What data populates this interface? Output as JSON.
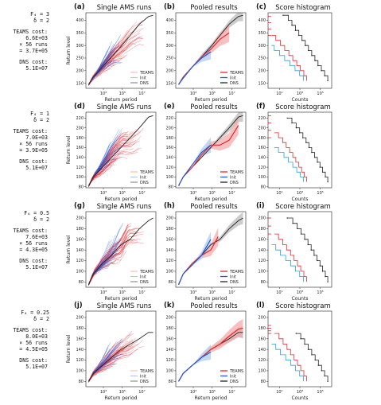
{
  "chart_data": {
    "type": "line",
    "column_titles": [
      "Single AMS runs",
      "Pooled results",
      "Score histogram"
    ],
    "xlabels": [
      "Return period",
      "Return period",
      "Counts"
    ],
    "ylabel": "Return level",
    "legend": [
      "TEAMS",
      "Init",
      "DNS"
    ],
    "rows": [
      {
        "labels": [
          "(a)",
          "(b)",
          "(c)"
        ],
        "side": [
          "F₄ = 3",
          "δ = 2",
          "TEAMS cost:",
          "6.6E+03",
          "× 56 runs",
          "= 3.7E+05",
          "DNS cost:",
          "5.1E+07"
        ],
        "ylim": [
          130,
          430
        ],
        "yticks": [
          150,
          200,
          250,
          300,
          350,
          400
        ],
        "dns_x": [
          0.5,
          1,
          2,
          3,
          4,
          5,
          6,
          7,
          7.5
        ],
        "dns_y": [
          145,
          175,
          215,
          255,
          295,
          340,
          385,
          415,
          420
        ],
        "teams_x": [
          0.5,
          1,
          2,
          3,
          4,
          5,
          6
        ],
        "teams_y": [
          145,
          175,
          215,
          255,
          285,
          325,
          350
        ],
        "init_x": [
          0.5,
          1,
          2,
          3,
          4
        ],
        "init_y": [
          145,
          170,
          215,
          250,
          275
        ],
        "hist_levels": [
          160,
          180,
          200,
          220,
          240,
          260,
          280,
          300,
          320,
          340,
          360,
          380,
          400,
          420
        ],
        "hist_dns_counts": [
          2300000,
          1000000,
          430000,
          180000,
          80000,
          35000,
          15000,
          6500,
          2800,
          1200,
          500,
          200,
          80,
          20
        ],
        "hist_teams_counts": [
          9000,
          4500,
          1800,
          700,
          250,
          90,
          30,
          10,
          3,
          1
        ],
        "hist_init_counts": [
          4000,
          1500,
          450,
          120,
          30,
          8,
          2,
          1
        ]
      },
      {
        "labels": [
          "(d)",
          "(e)",
          "(f)"
        ],
        "side": [
          "F₄ = 1",
          "δ = 2",
          "TEAMS cost:",
          "7.0E+03",
          "× 56 runs",
          "= 3.9E+05",
          "DNS cost:",
          "5.1E+07"
        ],
        "ylim": [
          78,
          232
        ],
        "yticks": [
          80,
          100,
          120,
          140,
          160,
          180,
          200,
          220
        ],
        "dns_x": [
          0.5,
          1,
          2,
          3,
          4,
          5,
          6,
          7,
          7.5
        ],
        "dns_y": [
          82,
          100,
          120,
          140,
          160,
          180,
          200,
          222,
          225
        ],
        "teams_x": [
          0.5,
          1,
          2,
          3,
          4,
          5,
          6,
          7
        ],
        "teams_y": [
          82,
          100,
          120,
          145,
          165,
          165,
          175,
          205
        ],
        "init_x": [
          0.5,
          1,
          2,
          3,
          4
        ],
        "init_y": [
          82,
          100,
          125,
          150,
          165
        ],
        "hist_levels": [
          90,
          100,
          110,
          120,
          130,
          140,
          150,
          160,
          170,
          180,
          190,
          200,
          210,
          220
        ],
        "hist_dns_counts": [
          2300000,
          1200000,
          600000,
          300000,
          150000,
          75000,
          35000,
          17000,
          8000,
          3500,
          1500,
          600,
          200,
          60
        ],
        "hist_teams_counts": [
          9000,
          5000,
          2500,
          1200,
          550,
          250,
          110,
          45,
          18,
          6,
          2
        ],
        "hist_init_counts": [
          4000,
          1800,
          700,
          250,
          80,
          25,
          6,
          2
        ]
      },
      {
        "labels": [
          "(g)",
          "(h)",
          "(i)"
        ],
        "side": [
          "F₄ = 0.5",
          "δ = 2",
          "TEAMS cost:",
          "7.6E+03",
          "× 56 runs",
          "= 4.3E+05",
          "DNS cost:",
          "5.1E+07"
        ],
        "ylim": [
          70,
          212
        ],
        "yticks": [
          80,
          100,
          120,
          140,
          160,
          180,
          200
        ],
        "dns_x": [
          0.5,
          1,
          2,
          3,
          4,
          5,
          6,
          7,
          7.5
        ],
        "dns_y": [
          75,
          95,
          115,
          130,
          150,
          160,
          180,
          195,
          200
        ],
        "teams_x": [
          0.5,
          1,
          2,
          3,
          4,
          4.8
        ],
        "teams_y": [
          75,
          95,
          115,
          130,
          140,
          165
        ],
        "init_x": [
          0.5,
          1,
          2,
          3,
          4
        ],
        "init_y": [
          75,
          95,
          112,
          130,
          160
        ],
        "hist_levels": [
          80,
          90,
          100,
          110,
          120,
          130,
          140,
          150,
          160,
          170,
          180,
          190,
          200
        ],
        "hist_dns_counts": [
          2300000,
          1200000,
          600000,
          300000,
          140000,
          65000,
          30000,
          13000,
          5500,
          2200,
          800,
          250,
          60
        ],
        "hist_teams_counts": [
          9000,
          4500,
          2000,
          850,
          350,
          140,
          50,
          18,
          6,
          2
        ],
        "hist_init_counts": [
          4000,
          1500,
          500,
          150,
          40,
          10,
          3,
          1
        ]
      },
      {
        "labels": [
          "(j)",
          "(k)",
          "(l)"
        ],
        "side": [
          "F₄ = 0.25",
          "δ = 2",
          "TEAMS cost:",
          "8.0E+03",
          "× 56 runs",
          "= 4.5E+05",
          "DNS cost:",
          "5.1E+07"
        ],
        "ylim": [
          70,
          212
        ],
        "yticks": [
          80,
          100,
          120,
          140,
          160,
          180,
          200
        ],
        "dns_x": [
          0.5,
          1,
          2,
          3,
          4,
          5,
          6,
          7,
          7.5
        ],
        "dns_y": [
          80,
          95,
          110,
          125,
          140,
          150,
          160,
          172,
          172
        ],
        "teams_x": [
          0.5,
          1,
          2,
          3,
          4,
          5,
          6,
          7,
          7.5
        ],
        "teams_y": [
          80,
          95,
          110,
          125,
          140,
          150,
          165,
          178,
          180
        ],
        "init_x": [
          0.5,
          1,
          2,
          3,
          4
        ],
        "init_y": [
          80,
          95,
          110,
          125,
          135
        ],
        "hist_levels": [
          80,
          90,
          100,
          110,
          120,
          130,
          140,
          150,
          160,
          170
        ],
        "hist_dns_counts": [
          2300000,
          1000000,
          450000,
          200000,
          85000,
          35000,
          14000,
          5500,
          2000,
          600
        ],
        "hist_teams_counts": [
          9000,
          4500,
          2000,
          850,
          350,
          140,
          55,
          20,
          7,
          2
        ],
        "hist_init_counts": [
          4000,
          1500,
          500,
          150,
          40,
          10,
          3,
          1
        ]
      }
    ],
    "xticks_period": [
      "10³",
      "10⁵",
      "10⁷"
    ],
    "xticks_counts": [
      "10¹",
      "10³",
      "10⁵"
    ],
    "colors": {
      "teams": "#e8262d",
      "init": "#1f5bd8",
      "init_hist": "#2a9fd9",
      "dns": "#222222",
      "teams_band": "#f4a7a7",
      "init_band": "#a9c8ee",
      "dns_band": "#b8b8b8"
    }
  }
}
